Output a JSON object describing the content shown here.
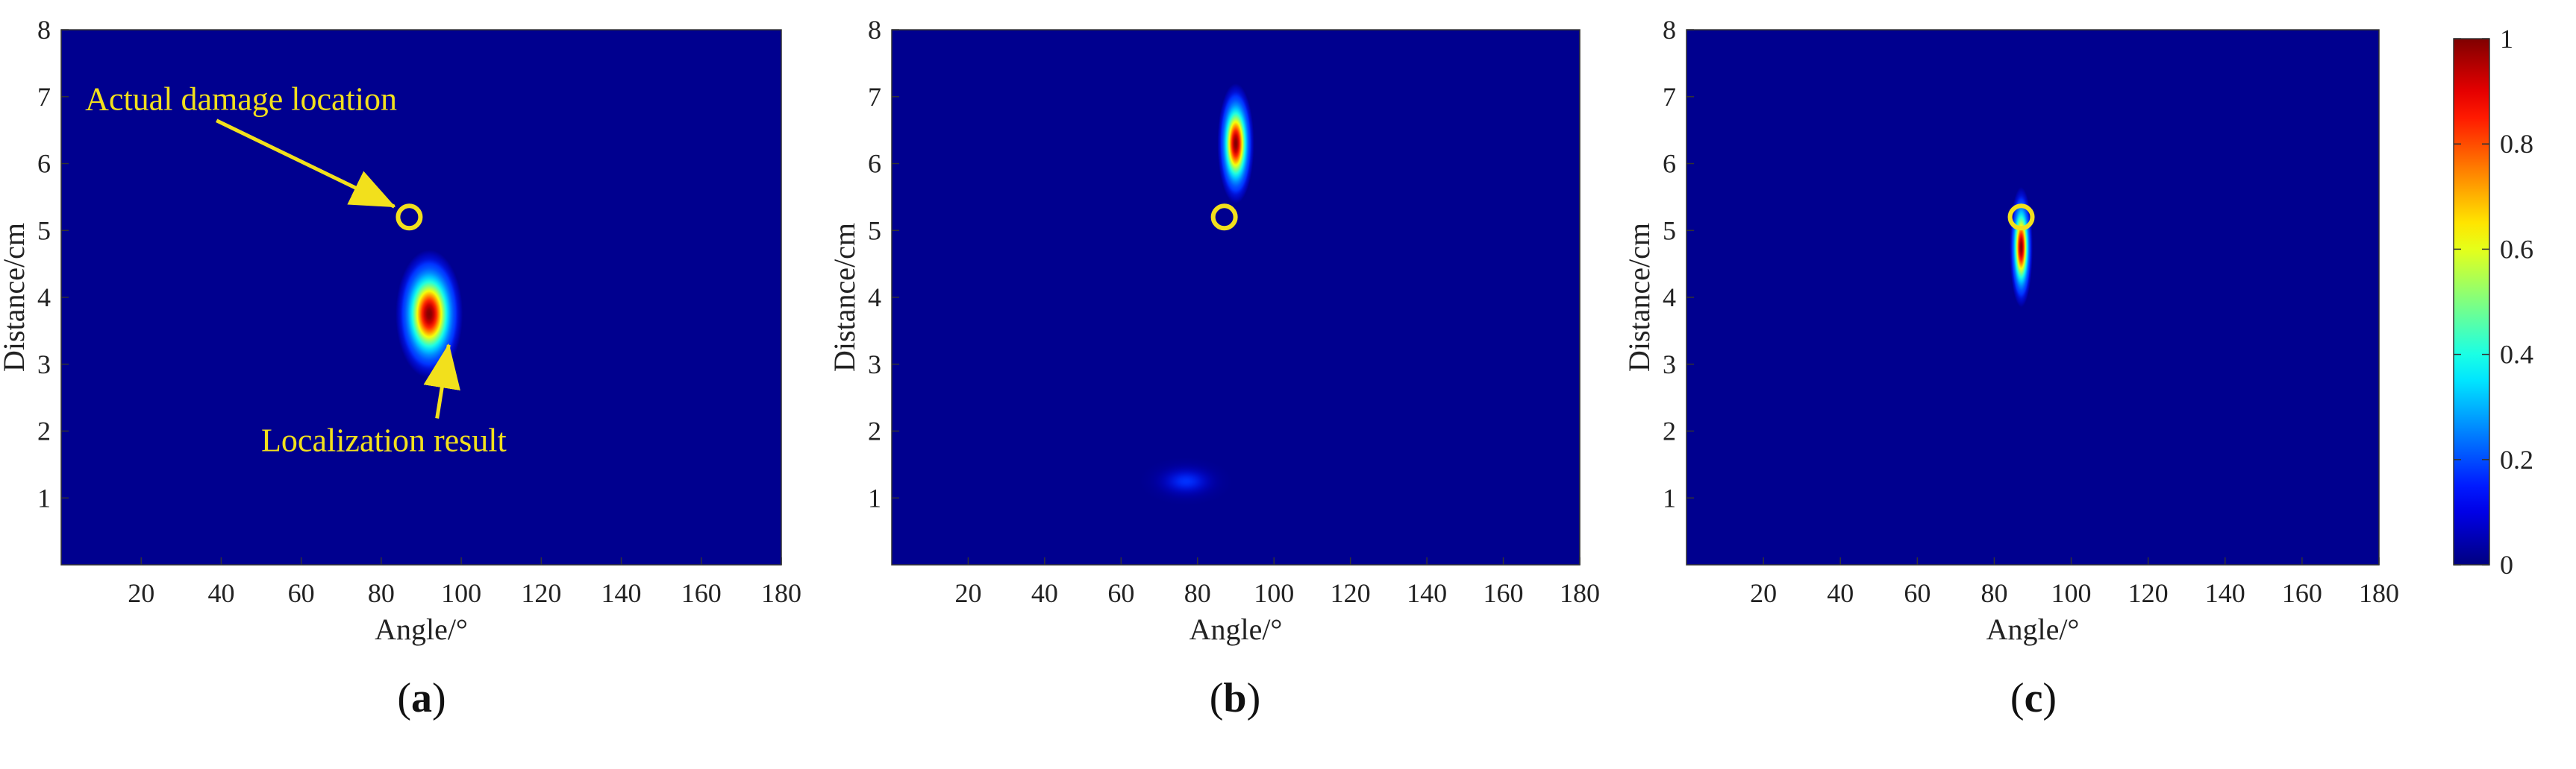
{
  "chart_data": [
    {
      "type": "heatmap",
      "panel_label": "(a)",
      "panel_letter": "a",
      "xlabel": "Angle/°",
      "ylabel": "Distance/cm",
      "xlim": [
        0,
        180
      ],
      "ylim": [
        0,
        8
      ],
      "x_ticks": [
        20,
        40,
        60,
        80,
        100,
        120,
        140,
        160,
        180
      ],
      "y_ticks": [
        1,
        2,
        3,
        4,
        5,
        6,
        7,
        8
      ],
      "actual_damage": {
        "angle": 87,
        "distance": 5.2
      },
      "peaks": [
        {
          "angle": 92,
          "distance": 3.75,
          "sigma_angle": 2.8,
          "sigma_distance": 0.32,
          "amplitude": 1.0
        }
      ],
      "annotations": [
        {
          "text": "Actual damage location",
          "target_angle": 87,
          "target_distance": 5.2,
          "text_angle": 6,
          "text_distance": 6.8
        },
        {
          "text": "Localization result",
          "target_angle": 95,
          "target_distance": 3.4,
          "text_angle": 50,
          "text_distance": 1.7
        }
      ]
    },
    {
      "type": "heatmap",
      "panel_label": "(b)",
      "panel_letter": "b",
      "xlabel": "Angle/°",
      "ylabel": "Distance/cm",
      "xlim": [
        0,
        180
      ],
      "ylim": [
        0,
        8
      ],
      "x_ticks": [
        20,
        40,
        60,
        80,
        100,
        120,
        140,
        160,
        180
      ],
      "y_ticks": [
        1,
        2,
        3,
        4,
        5,
        6,
        7,
        8
      ],
      "actual_damage": {
        "angle": 87,
        "distance": 5.2
      },
      "peaks": [
        {
          "angle": 90,
          "distance": 6.3,
          "sigma_angle": 1.6,
          "sigma_distance": 0.3,
          "amplitude": 1.0
        },
        {
          "angle": 77,
          "distance": 1.25,
          "sigma_angle": 4.0,
          "sigma_distance": 0.12,
          "amplitude": 0.06
        }
      ],
      "annotations": []
    },
    {
      "type": "heatmap",
      "panel_label": "(c)",
      "panel_letter": "c",
      "xlabel": "Angle/°",
      "ylabel": "Distance/cm",
      "xlim": [
        0,
        180
      ],
      "ylim": [
        0,
        8
      ],
      "x_ticks": [
        20,
        40,
        60,
        80,
        100,
        120,
        140,
        160,
        180
      ],
      "y_ticks": [
        1,
        2,
        3,
        4,
        5,
        6,
        7,
        8
      ],
      "actual_damage": {
        "angle": 87,
        "distance": 5.2
      },
      "peaks": [
        {
          "angle": 87,
          "distance": 4.75,
          "sigma_angle": 1.0,
          "sigma_distance": 0.3,
          "amplitude": 1.0
        }
      ],
      "annotations": []
    }
  ],
  "colorbar": {
    "min": 0,
    "max": 1,
    "ticks": [
      0,
      0.2,
      0.4,
      0.6,
      0.8,
      1
    ],
    "tick_labels": [
      "0",
      "0.2",
      "0.4",
      "0.6",
      "0.8",
      "1"
    ],
    "colormap": "jet"
  },
  "colors": {
    "marker": "#f2e01c",
    "annotation": "#f2e01c",
    "background_low": "#00008f"
  }
}
